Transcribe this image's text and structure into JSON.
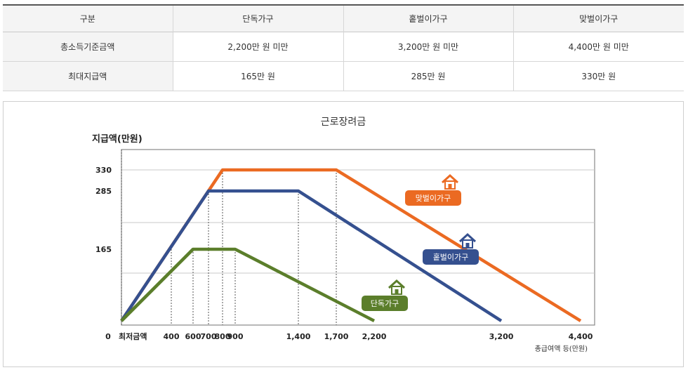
{
  "table": {
    "headers": [
      "구분",
      "단독가구",
      "홑벌이가구",
      "맞벌이가구"
    ],
    "rows": [
      [
        "총소득기준금액",
        "2,200만 원 미만",
        "3,200만 원 미만",
        "4,400만 원 미만"
      ],
      [
        "최대지급액",
        "165만 원",
        "285만 원",
        "330만 원"
      ]
    ]
  },
  "chart_data": {
    "type": "line",
    "title": "근로장려금",
    "ylabel": "지급액(만원)",
    "xlabel": "총급여액 등(만원)",
    "x_zero_label": "0",
    "x_min_label": "최저금액",
    "x_ticks": [
      400,
      600,
      700,
      800,
      900,
      1400,
      1700,
      2200,
      3200,
      4400
    ],
    "x_tick_labels": [
      "400",
      "600",
      "700",
      "800",
      "900",
      "1,400",
      "1,700",
      "2,200",
      "3,200",
      "4,400"
    ],
    "y_ticks": [
      165,
      285,
      330
    ],
    "y_tick_labels": [
      "165",
      "285",
      "330"
    ],
    "grid": true,
    "series": [
      {
        "name": "맞벌이가구",
        "color": "#eb6a22",
        "points": [
          [
            0,
            0
          ],
          [
            800,
            330
          ],
          [
            1700,
            330
          ],
          [
            4400,
            0
          ]
        ]
      },
      {
        "name": "홑벌이가구",
        "color": "#35508f",
        "points": [
          [
            0,
            0
          ],
          [
            700,
            285
          ],
          [
            1400,
            285
          ],
          [
            3200,
            0
          ]
        ]
      },
      {
        "name": "단독가구",
        "color": "#5b7e2b",
        "points": [
          [
            0,
            0
          ],
          [
            600,
            165
          ],
          [
            900,
            165
          ],
          [
            2200,
            0
          ]
        ]
      }
    ],
    "icon": "house-icon"
  }
}
